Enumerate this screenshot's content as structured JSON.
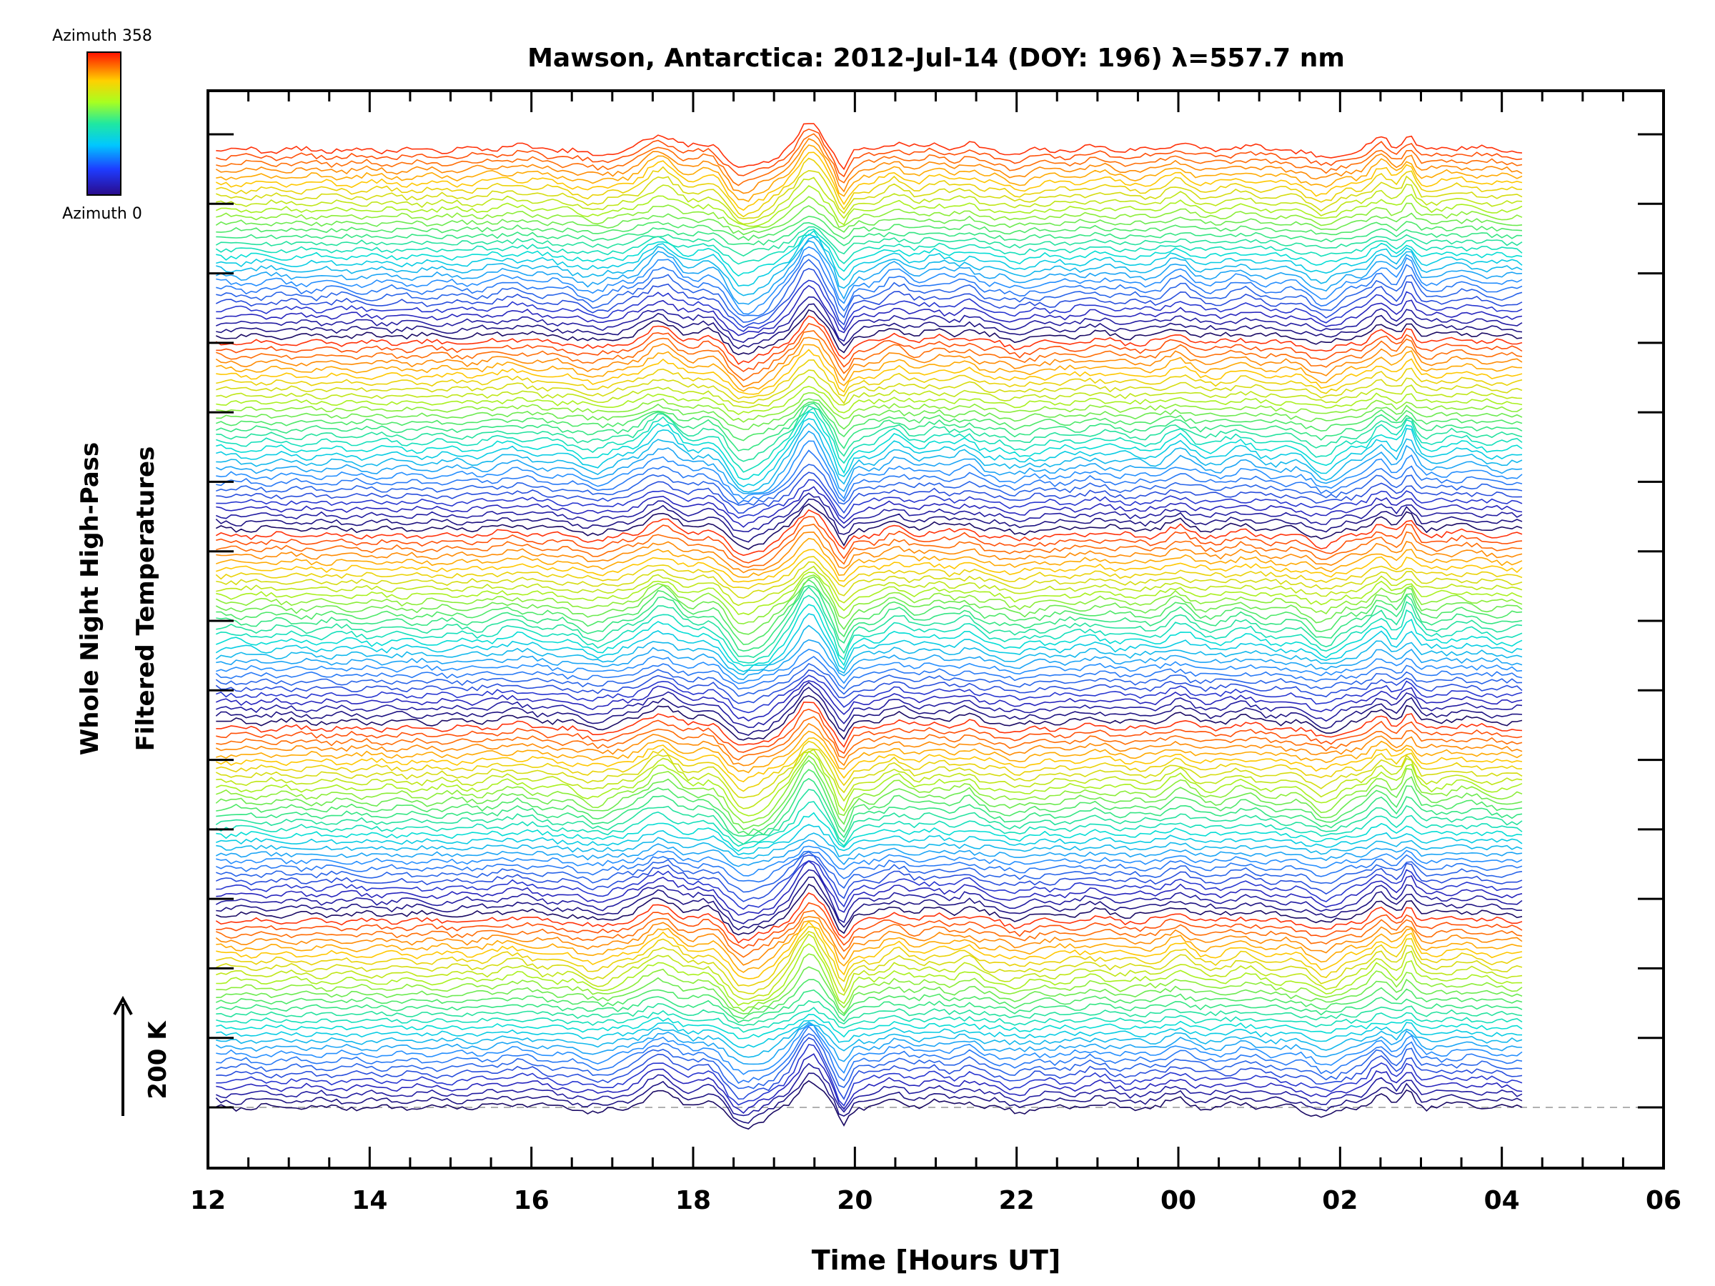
{
  "chart_data": {
    "type": "line",
    "title": "Mawson, Antarctica: 2012-Jul-14 (DOY: 196) λ=557.7 nm",
    "xlabel": "Time [Hours UT]",
    "ylabel_lines": [
      "Whole Night High-Pass",
      "Filtered Temperatures"
    ],
    "scale_bar_label": "200 K",
    "x_tick_labels": [
      "12",
      "14",
      "16",
      "18",
      "20",
      "22",
      "00",
      "02",
      "04",
      "06"
    ],
    "xlim": [
      12,
      30
    ],
    "data_x_range": [
      12.1,
      28.25
    ],
    "colorbar": {
      "top_label": "Azimuth 358",
      "bottom_label": "Azimuth 0",
      "colormap": "rainbow (blue to red)"
    },
    "series_count": 145,
    "stacked_offset": true,
    "zero_baseline": "dashed grey line",
    "colors": {
      "low_azimuth": "#20209a",
      "high_azimuth": "#ff4010",
      "baseline": "#b0b0b0"
    }
  }
}
